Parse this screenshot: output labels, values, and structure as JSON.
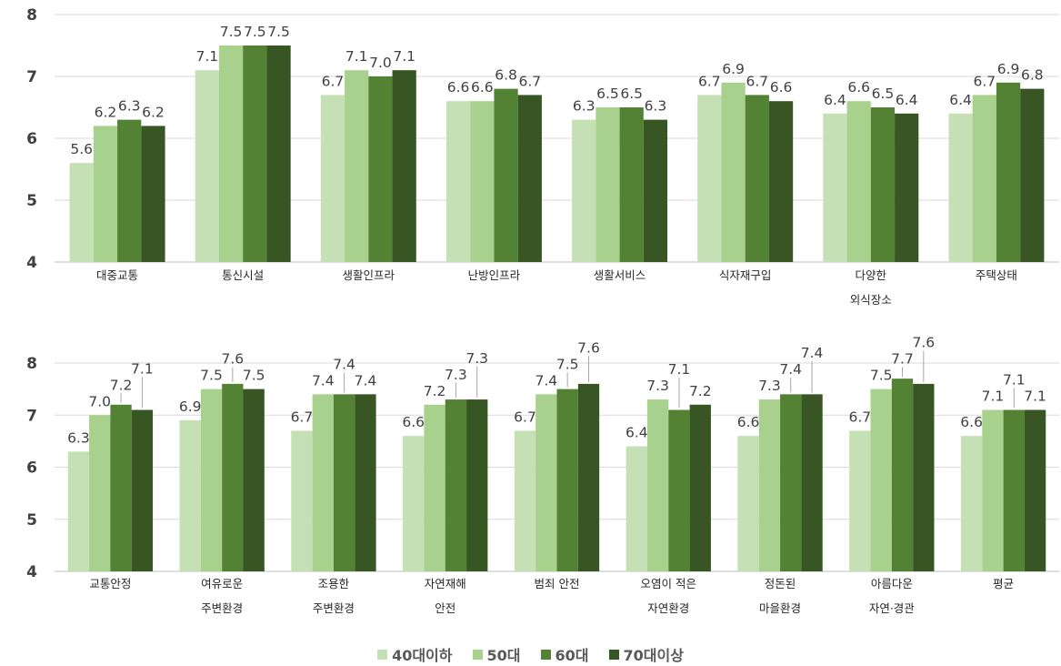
{
  "chart_data": [
    {
      "type": "bar",
      "ylim": [
        4,
        8
      ],
      "yticks": [
        "4",
        "5",
        "6",
        "7",
        "8"
      ],
      "grid": true,
      "categories": [
        [
          "대중교통"
        ],
        [
          "통신시설"
        ],
        [
          "생활인프라"
        ],
        [
          "난방인프라"
        ],
        [
          "생활서비스"
        ],
        [
          "식자재구입"
        ],
        [
          "다양한",
          "외식장소"
        ],
        [
          "주택상태"
        ]
      ],
      "series": [
        {
          "name": "40대이하",
          "values": [
            5.6,
            7.1,
            6.7,
            6.6,
            6.3,
            6.7,
            6.4,
            6.4
          ],
          "labels": [
            "5.6",
            "7.1",
            "6.7",
            "6.6",
            "6.3",
            "6.7",
            "6.4",
            "6.4"
          ]
        },
        {
          "name": "50대",
          "values": [
            6.2,
            7.5,
            7.1,
            6.6,
            6.5,
            6.9,
            6.6,
            6.7
          ],
          "labels": [
            "6.2",
            "7.5",
            "7.1",
            "6.6",
            "6.5",
            "6.9",
            "6.6",
            "6.7"
          ]
        },
        {
          "name": "60대",
          "values": [
            6.3,
            7.5,
            7.0,
            6.8,
            6.5,
            6.7,
            6.5,
            6.9
          ],
          "labels": [
            "6.3",
            "7.5",
            "7.0",
            "6.8",
            "6.5",
            "6.7",
            "6.5",
            "6.9"
          ]
        },
        {
          "name": "70대이상",
          "values": [
            6.2,
            7.5,
            7.1,
            6.7,
            6.3,
            6.6,
            6.4,
            6.8
          ],
          "labels": [
            "6.2",
            "7.5",
            "7.1",
            "6.7",
            "6.3",
            "6.6",
            "6.4",
            "6.8"
          ]
        }
      ]
    },
    {
      "type": "bar",
      "ylim": [
        4,
        8
      ],
      "yticks": [
        "4",
        "5",
        "6",
        "7",
        "8"
      ],
      "grid": true,
      "categories": [
        [
          "교통안정"
        ],
        [
          "여유로운",
          "주변환경"
        ],
        [
          "조용한",
          "주변환경"
        ],
        [
          "자연재해",
          "안전"
        ],
        [
          "범죄 안전"
        ],
        [
          "오염이 적은",
          "자연환경"
        ],
        [
          "정돈된",
          "마을환경"
        ],
        [
          "아름다운",
          "자연·경관"
        ],
        [
          "평균"
        ]
      ],
      "series": [
        {
          "name": "40대이하",
          "values": [
            6.3,
            6.9,
            6.7,
            6.6,
            6.7,
            6.4,
            6.6,
            6.7,
            6.6
          ],
          "labels": [
            "6.3",
            "6.9",
            "6.7",
            "6.6",
            "6.7",
            "6.4",
            "6.6",
            "6.7",
            "6.6"
          ]
        },
        {
          "name": "50대",
          "values": [
            7.0,
            7.5,
            7.4,
            7.2,
            7.4,
            7.3,
            7.3,
            7.5,
            7.1
          ],
          "labels": [
            "7.0",
            "7.5",
            "7.4",
            "7.2",
            "7.4",
            "7.3",
            "7.3",
            "7.5",
            "7.1"
          ]
        },
        {
          "name": "60대",
          "values": [
            7.2,
            7.6,
            7.4,
            7.3,
            7.5,
            7.1,
            7.4,
            7.7,
            7.1
          ],
          "labels": [
            "7.2",
            "7.6",
            "7.4",
            "7.3",
            "7.5",
            "7.1",
            "7.4",
            "7.7",
            "7.1"
          ]
        },
        {
          "name": "70대이상",
          "values": [
            7.1,
            7.5,
            7.4,
            7.3,
            7.6,
            7.2,
            7.4,
            7.6,
            7.1
          ],
          "labels": [
            "7.1",
            "7.5",
            "7.4",
            "7.3",
            "7.6",
            "7.2",
            "7.4",
            "7.6",
            "7.1"
          ]
        }
      ]
    }
  ],
  "legend": {
    "position": "bottom",
    "items": [
      {
        "label": "40대이하",
        "color": "#c5e0b4"
      },
      {
        "label": "50대",
        "color": "#a9d18e"
      },
      {
        "label": "60대",
        "color": "#548235"
      },
      {
        "label": "70대이상",
        "color": "#375623"
      }
    ]
  }
}
